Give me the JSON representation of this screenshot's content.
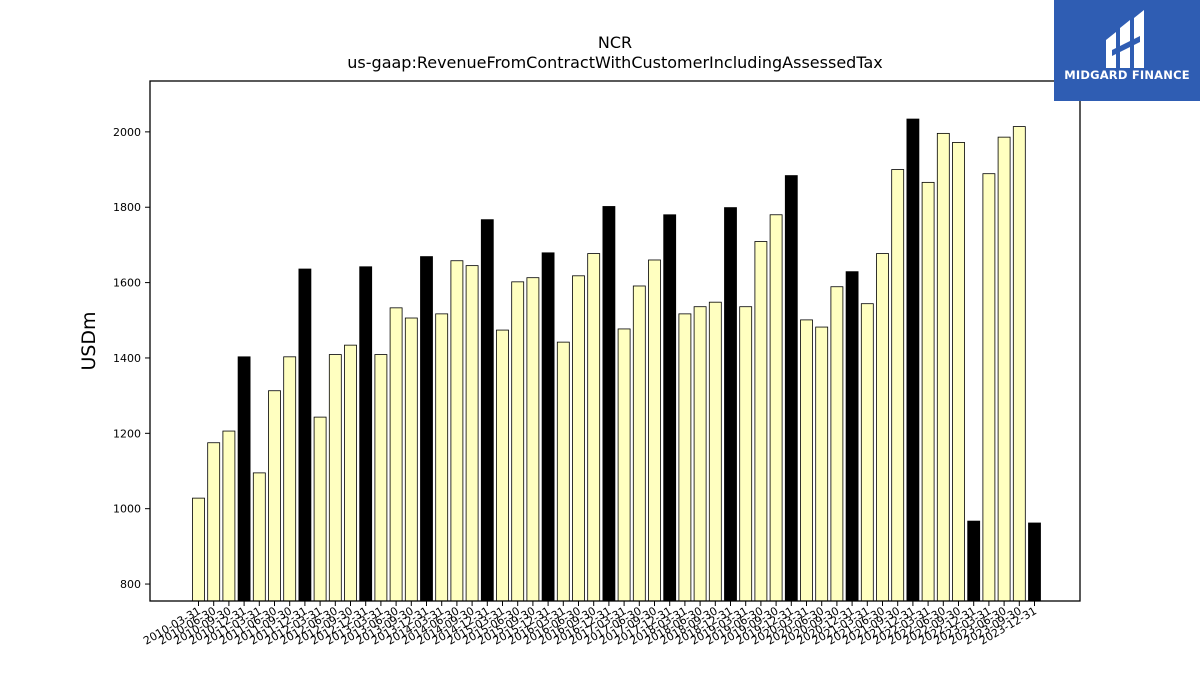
{
  "logo": {
    "text": "MIDGARD FINANCE"
  },
  "chart_data": {
    "type": "bar",
    "title": "NCR",
    "subtitle": "us-gaap:RevenueFromContractWithCustomerIncludingAssessedTax",
    "ylabel": "USDm",
    "xlabel": "",
    "ylim": [
      755,
      2135
    ],
    "yticks": [
      800,
      1000,
      1200,
      1400,
      1600,
      1800,
      2000
    ],
    "grid": false,
    "colors": {
      "quarter": "#ffffc0",
      "annual": "#000000",
      "edge": "#000000"
    },
    "categories": [
      "2010-03-31",
      "2010-06-30",
      "2010-09-30",
      "2010-12-31",
      "2011-03-31",
      "2011-06-30",
      "2011-09-30",
      "2011-12-31",
      "2012-03-31",
      "2012-06-30",
      "2012-09-30",
      "2012-12-31",
      "2013-03-31",
      "2013-06-30",
      "2013-09-30",
      "2013-12-31",
      "2014-03-31",
      "2014-06-30",
      "2014-09-30",
      "2014-12-31",
      "2015-03-31",
      "2015-06-30",
      "2015-09-30",
      "2015-12-31",
      "2016-03-31",
      "2016-06-30",
      "2016-09-30",
      "2016-12-31",
      "2017-03-31",
      "2017-06-30",
      "2017-09-30",
      "2017-12-31",
      "2018-03-31",
      "2018-06-30",
      "2018-09-30",
      "2018-12-31",
      "2019-03-31",
      "2019-06-30",
      "2019-09-30",
      "2019-12-31",
      "2020-03-31",
      "2020-06-30",
      "2020-09-30",
      "2020-12-31",
      "2021-03-31",
      "2021-06-30",
      "2021-09-30",
      "2021-12-31",
      "2022-03-31",
      "2022-06-30",
      "2022-09-30",
      "2022-12-31",
      "2023-03-31",
      "2023-06-30",
      "2023-09-30",
      "2023-12-31"
    ],
    "values": [
      1028,
      1175,
      1206,
      1403,
      1095,
      1313,
      1403,
      1636,
      1243,
      1409,
      1434,
      1642,
      1409,
      1533,
      1506,
      1669,
      1517,
      1658,
      1645,
      1767,
      1474,
      1602,
      1613,
      1679,
      1442,
      1618,
      1677,
      1802,
      1477,
      1591,
      1660,
      1780,
      1517,
      1536,
      1548,
      1799,
      1536,
      1709,
      1780,
      1884,
      1501,
      1482,
      1589,
      1629,
      1544,
      1677,
      1900,
      2034,
      1866,
      1996,
      1972,
      967,
      1889,
      1986,
      2014,
      962
    ],
    "annual_flags": [
      false,
      false,
      false,
      true,
      false,
      false,
      false,
      true,
      false,
      false,
      false,
      true,
      false,
      false,
      false,
      true,
      false,
      false,
      false,
      true,
      false,
      false,
      false,
      true,
      false,
      false,
      false,
      true,
      false,
      false,
      false,
      true,
      false,
      false,
      false,
      true,
      false,
      false,
      false,
      true,
      false,
      false,
      false,
      true,
      false,
      false,
      false,
      true,
      false,
      false,
      false,
      true,
      false,
      false,
      false,
      true
    ]
  }
}
